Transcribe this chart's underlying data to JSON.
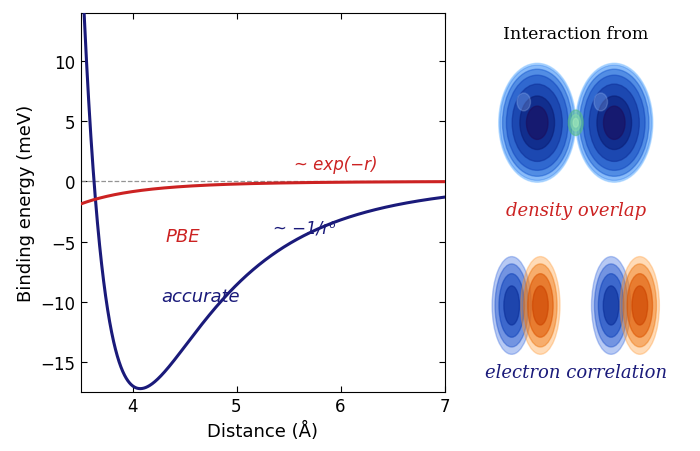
{
  "xlabel": "Distance (Å)",
  "ylabel": "Binding energy (meV)",
  "xlim": [
    3.5,
    7.0
  ],
  "ylim": [
    -17.5,
    14
  ],
  "yticks": [
    -15,
    -10,
    -5,
    0,
    5,
    10
  ],
  "xticks": [
    4,
    5,
    6,
    7
  ],
  "pbe_color": "#cc2222",
  "accurate_color": "#1a1a7a",
  "dashed_color": "#888888",
  "pbe_label": "PBE",
  "accurate_label": "accurate",
  "pbe_annotation": "~ exp(−r)",
  "accurate_annotation": "~ −1/r⁶",
  "interaction_title": "Interaction from",
  "density_overlap_label": "density overlap",
  "electron_correlation_label": "electron correlation",
  "background_color": "#ffffff"
}
